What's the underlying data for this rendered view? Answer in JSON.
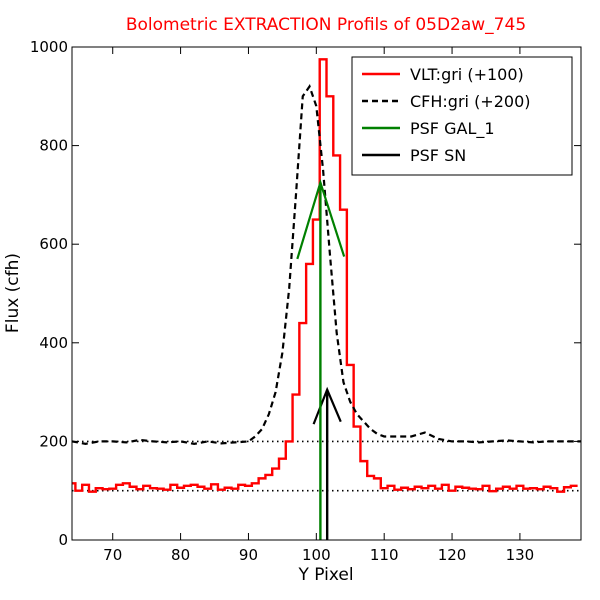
{
  "chart_data": {
    "type": "line",
    "title": "Bolometric EXTRACTION Profils of 05D2aw_745",
    "title_color": "#ff0000",
    "xlabel": "Y Pixel",
    "ylabel": "Flux (cfh)",
    "xlim": [
      64,
      139
    ],
    "ylim": [
      0,
      1000
    ],
    "xticks": [
      70,
      80,
      90,
      100,
      110,
      120,
      130
    ],
    "yticks": [
      0,
      200,
      400,
      600,
      800,
      1000
    ],
    "grid": false,
    "legend_position": "top-right",
    "reference_lines": [
      {
        "y": 100,
        "style": "dotted",
        "color": "#000000"
      },
      {
        "y": 200,
        "style": "dotted",
        "color": "#000000"
      }
    ],
    "series": [
      {
        "name": "VLT:gri (+100)",
        "color": "#ff0000",
        "style": "steps",
        "x": [
          64,
          65,
          66,
          67,
          68,
          69,
          70,
          71,
          72,
          73,
          74,
          75,
          76,
          77,
          78,
          79,
          80,
          81,
          82,
          83,
          84,
          85,
          86,
          87,
          88,
          89,
          90,
          91,
          92,
          93,
          94,
          95,
          96,
          97,
          98,
          99,
          100,
          101,
          102,
          103,
          104,
          105,
          106,
          107,
          108,
          109,
          110,
          111,
          112,
          113,
          114,
          115,
          116,
          117,
          118,
          119,
          120,
          121,
          122,
          123,
          124,
          125,
          126,
          127,
          128,
          129,
          130,
          131,
          132,
          133,
          134,
          135,
          136,
          137,
          138
        ],
        "y": [
          115,
          100,
          112,
          98,
          105,
          103,
          104,
          112,
          115,
          108,
          103,
          110,
          105,
          104,
          102,
          112,
          106,
          110,
          112,
          108,
          104,
          113,
          102,
          106,
          104,
          112,
          110,
          115,
          125,
          132,
          145,
          165,
          200,
          295,
          440,
          560,
          650,
          975,
          900,
          780,
          670,
          355,
          230,
          160,
          130,
          125,
          105,
          110,
          102,
          106,
          103,
          108,
          105,
          110,
          104,
          112,
          100,
          108,
          106,
          104,
          103,
          110,
          99,
          104,
          108,
          104,
          110,
          104,
          105,
          103,
          108,
          105,
          98,
          107,
          110
        ]
      },
      {
        "name": "CFH:gri (+200)",
        "color": "#000000",
        "style": "dashed",
        "x": [
          64,
          66,
          68,
          70,
          72,
          74,
          76,
          78,
          80,
          82,
          84,
          86,
          88,
          90,
          91,
          92,
          93,
          94,
          95,
          96,
          97,
          98,
          99,
          100,
          101,
          102,
          103,
          104,
          105,
          106,
          107,
          108,
          109,
          110,
          112,
          114,
          116,
          118,
          120,
          122,
          124,
          126,
          128,
          130,
          132,
          134,
          136,
          139
        ],
        "y": [
          200,
          195,
          200,
          200,
          198,
          203,
          200,
          198,
          200,
          195,
          200,
          196,
          198,
          200,
          210,
          225,
          255,
          300,
          380,
          510,
          700,
          900,
          920,
          880,
          750,
          580,
          420,
          320,
          280,
          255,
          240,
          225,
          215,
          210,
          210,
          210,
          218,
          205,
          200,
          200,
          198,
          200,
          202,
          200,
          198,
          200,
          200,
          200
        ]
      },
      {
        "name": "PSF GAL_1",
        "color": "#008000",
        "style": "solid",
        "x": [
          97.2,
          100.6,
          104.1
        ],
        "y": [
          570,
          725,
          575
        ]
      },
      {
        "name": "PSF SN",
        "color": "#000000",
        "style": "solid",
        "x": [
          99.6,
          101.6,
          103.6
        ],
        "y": [
          235,
          305,
          240
        ]
      }
    ],
    "vertical_markers": [
      {
        "series": "PSF GAL_1",
        "x": 100.6,
        "y_top": 725,
        "color": "#008000"
      },
      {
        "series": "PSF SN",
        "x": 101.6,
        "y_top": 305,
        "color": "#000000"
      }
    ]
  }
}
